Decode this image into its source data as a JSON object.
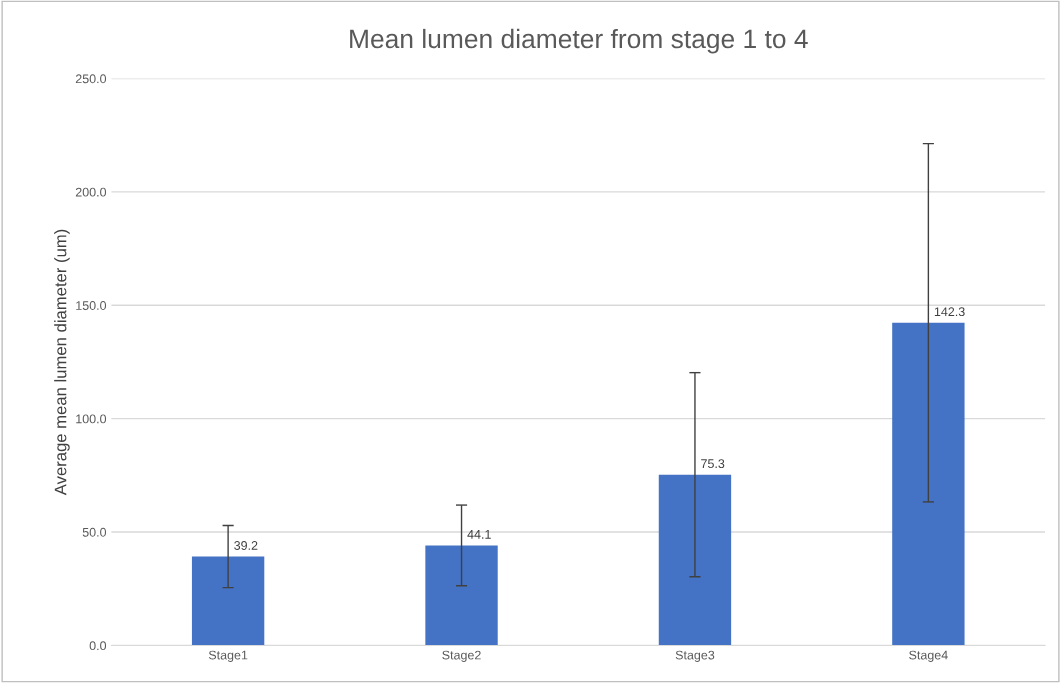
{
  "chart_data": {
    "type": "bar",
    "title": "Mean lumen diameter from stage 1 to 4",
    "ylabel": "Average mean lumen diameter (um)",
    "categories": [
      "Stage1",
      "Stage2",
      "Stage3",
      "Stage4"
    ],
    "values": [
      39.2,
      44.1,
      75.3,
      142.3
    ],
    "errors": [
      13.7,
      17.8,
      45.0,
      79.0
    ],
    "color": "#4472c4",
    "data_labels": true,
    "ylim": [
      0,
      250
    ],
    "yticks": [
      {
        "value": 0,
        "label": "0.0"
      },
      {
        "value": 50,
        "label": "50.0"
      },
      {
        "value": 100,
        "label": "100.0"
      },
      {
        "value": 150,
        "label": "150.0"
      },
      {
        "value": 200,
        "label": "200.0"
      },
      {
        "value": 250,
        "label": "250.0"
      }
    ],
    "grid": "y"
  }
}
